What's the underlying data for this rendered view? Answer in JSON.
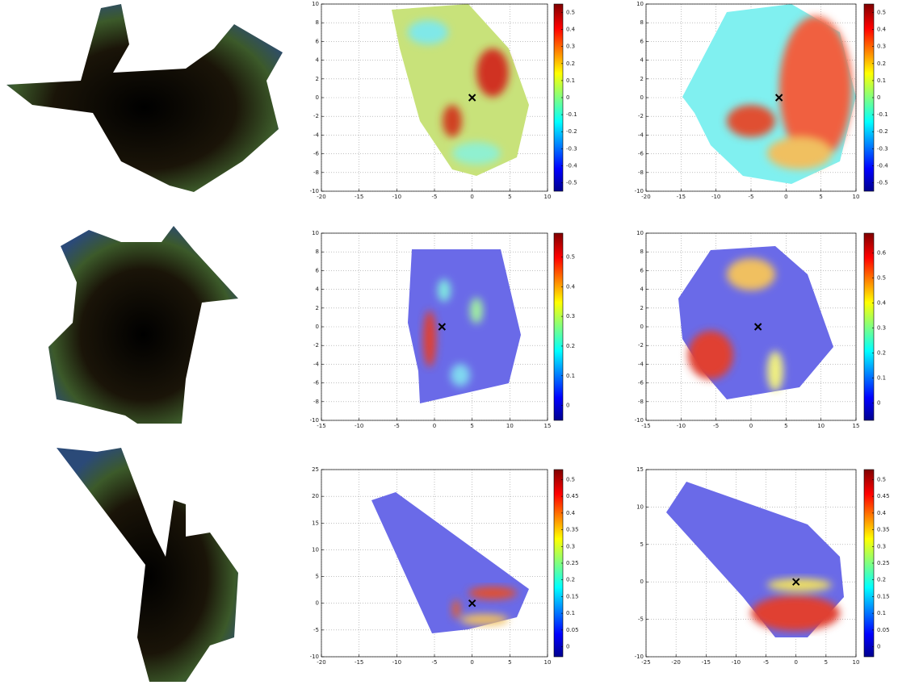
{
  "chart_data": [
    {
      "type": "heatmap",
      "grid": true,
      "marker_color": "#000000",
      "xlim": [
        -20,
        10
      ],
      "xticks": [
        -20,
        -15,
        -10,
        -5,
        0,
        5,
        10
      ],
      "ylim": [
        -10,
        10
      ],
      "yticks": [
        -10,
        -8,
        -6,
        -4,
        -2,
        0,
        2,
        4,
        6,
        8,
        10
      ],
      "colorbar": {
        "lim": [
          -0.55,
          0.55
        ],
        "ticks": [
          -0.5,
          -0.4,
          -0.3,
          -0.2,
          -0.1,
          0,
          0.1,
          0.2,
          0.3,
          0.4,
          0.5
        ]
      },
      "points": {
        "x": [
          0
        ],
        "y": [
          0
        ]
      }
    },
    {
      "type": "heatmap",
      "grid": true,
      "marker_color": "#000000",
      "xlim": [
        -20,
        10
      ],
      "xticks": [
        -20,
        -15,
        -10,
        -5,
        0,
        5,
        10
      ],
      "ylim": [
        -10,
        10
      ],
      "yticks": [
        -10,
        -8,
        -6,
        -4,
        -2,
        0,
        2,
        4,
        6,
        8,
        10
      ],
      "colorbar": {
        "lim": [
          -0.55,
          0.55
        ],
        "ticks": [
          -0.5,
          -0.4,
          -0.3,
          -0.2,
          -0.1,
          0,
          0.1,
          0.2,
          0.3,
          0.4,
          0.5
        ]
      },
      "points": {
        "x": [
          -1
        ],
        "y": [
          0
        ]
      }
    },
    {
      "type": "heatmap",
      "grid": true,
      "marker_color": "#000000",
      "xlim": [
        -15,
        15
      ],
      "xticks": [
        -15,
        -10,
        -5,
        0,
        5,
        10,
        15
      ],
      "ylim": [
        -10,
        10
      ],
      "yticks": [
        -10,
        -8,
        -6,
        -4,
        -2,
        0,
        2,
        4,
        6,
        8,
        10
      ],
      "colorbar": {
        "lim": [
          -0.05,
          0.58
        ],
        "ticks": [
          0,
          0.1,
          0.2,
          0.3,
          0.4,
          0.5
        ]
      },
      "points": {
        "x": [
          1
        ],
        "y": [
          0
        ]
      }
    },
    {
      "type": "heatmap",
      "grid": true,
      "marker_color": "#000000",
      "xlim": [
        -15,
        15
      ],
      "xticks": [
        -15,
        -10,
        -5,
        0,
        5,
        10,
        15
      ],
      "ylim": [
        -10,
        10
      ],
      "yticks": [
        -10,
        -8,
        -6,
        -4,
        -2,
        0,
        2,
        4,
        6,
        8,
        10
      ],
      "colorbar": {
        "lim": [
          -0.07,
          0.68
        ],
        "ticks": [
          0,
          0.1,
          0.2,
          0.3,
          0.4,
          0.5,
          0.6
        ]
      },
      "points": {
        "x": [
          1
        ],
        "y": [
          0
        ]
      }
    },
    {
      "type": "heatmap",
      "grid": true,
      "marker_color": "#000000",
      "xlim": [
        -20,
        10
      ],
      "xticks": [
        -20,
        -15,
        -10,
        -5,
        0,
        5,
        10
      ],
      "ylim": [
        -10,
        25
      ],
      "yticks": [
        -10,
        -5,
        0,
        5,
        10,
        15,
        20,
        25
      ],
      "colorbar": {
        "lim": [
          -0.03,
          0.53
        ],
        "ticks": [
          0,
          0.05,
          0.1,
          0.15,
          0.2,
          0.25,
          0.3,
          0.35,
          0.4,
          0.45,
          0.5
        ]
      },
      "points": {
        "x": [
          0
        ],
        "y": [
          0
        ]
      }
    },
    {
      "type": "heatmap",
      "grid": true,
      "marker_color": "#000000",
      "xlim": [
        -25,
        10
      ],
      "xticks": [
        -25,
        -20,
        -15,
        -10,
        -5,
        0,
        5,
        10
      ],
      "ylim": [
        -10,
        15
      ],
      "yticks": [
        -10,
        -5,
        0,
        5,
        10,
        15
      ],
      "colorbar": {
        "lim": [
          -0.03,
          0.53
        ],
        "ticks": [
          0,
          0.05,
          0.1,
          0.15,
          0.2,
          0.25,
          0.3,
          0.35,
          0.4,
          0.45,
          0.5
        ]
      },
      "points": {
        "x": [
          0
        ],
        "y": [
          0
        ]
      }
    }
  ]
}
